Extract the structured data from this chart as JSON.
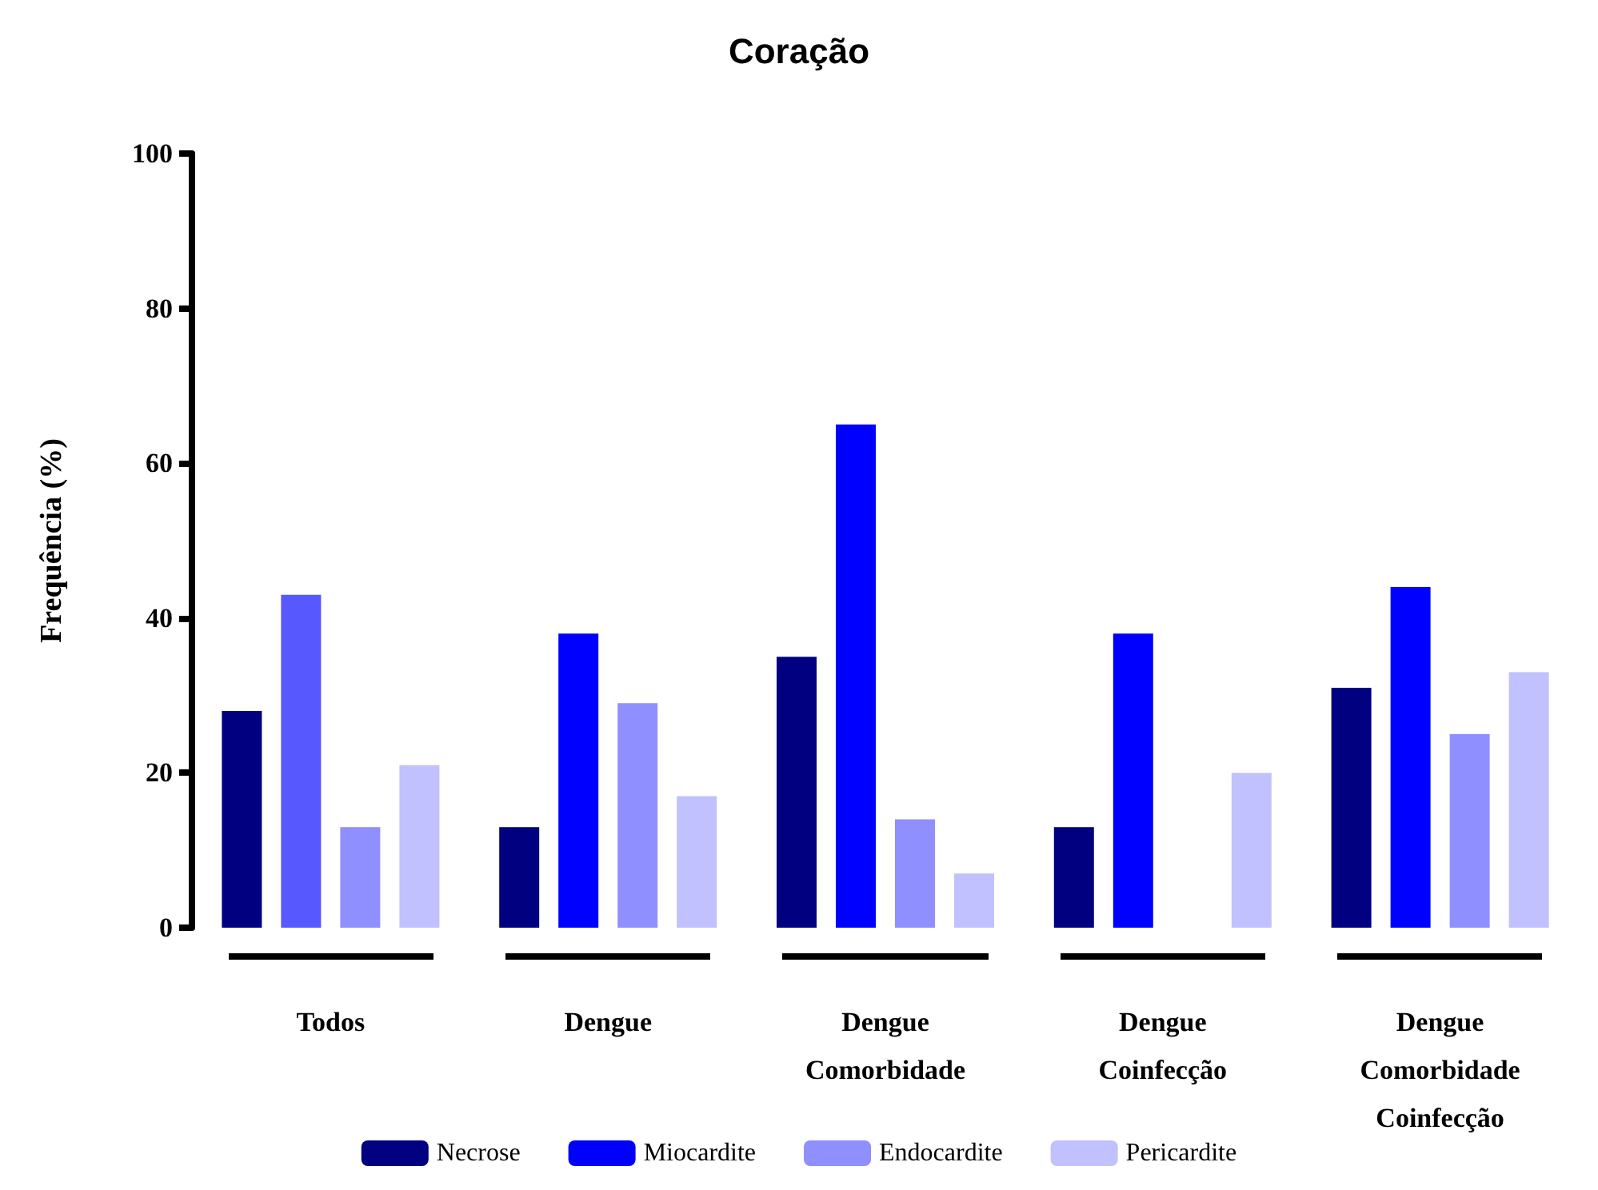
{
  "chart_data": {
    "type": "bar",
    "title": "Coração",
    "ylabel": "Frequência (%)",
    "categories": [
      "Todos",
      "Dengue",
      "Dengue Comorbidade",
      "Dengue Coinfecção",
      "Dengue Comorbidade Coinfecção"
    ],
    "series": [
      {
        "name": "Necrose",
        "color": "#000080",
        "values": [
          28,
          13,
          35,
          13,
          31
        ]
      },
      {
        "name": "Miocardite",
        "color": "#0000ff",
        "colors": [
          "#5858ff",
          "#0000ff",
          "#0000ff",
          "#0000ff",
          "#0000ff"
        ],
        "values": [
          43,
          38,
          65,
          38,
          44
        ]
      },
      {
        "name": "Endocardite",
        "color": "#8f8fff",
        "values": [
          13,
          29,
          14,
          null,
          25
        ]
      },
      {
        "name": "Pericardite",
        "color": "#c1c1ff",
        "values": [
          21,
          17,
          7,
          20,
          33
        ]
      }
    ],
    "ylim": [
      0,
      100
    ],
    "yticks": [
      0,
      20,
      40,
      60,
      80,
      100
    ],
    "grid": false,
    "legend": "bottom"
  }
}
